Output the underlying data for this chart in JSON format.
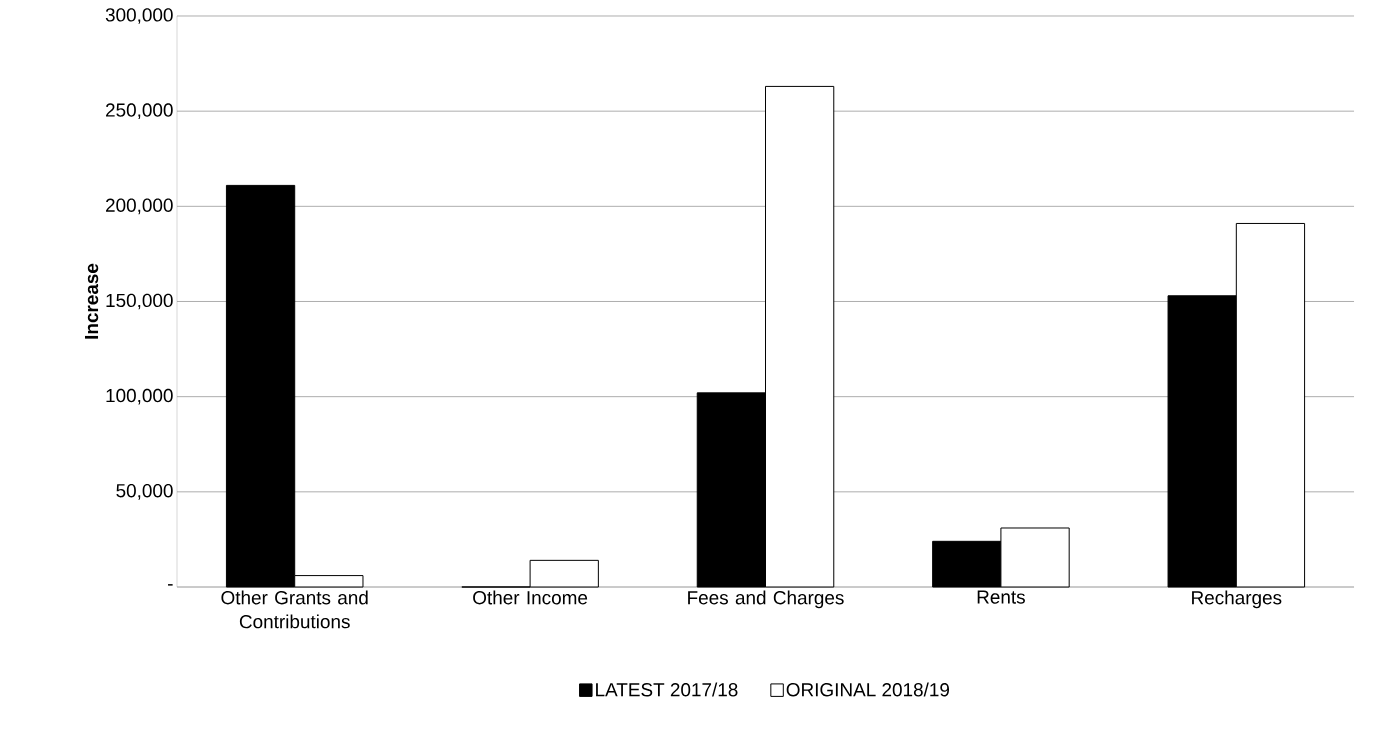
{
  "chart_data": {
    "type": "bar",
    "ylabel": "Increase",
    "categories": [
      "Other Grants and Contributions",
      "Other Income",
      "Fees and Charges",
      "Rents",
      "Recharges"
    ],
    "series": [
      {
        "name": "LATEST 2017/18",
        "color": "#000000",
        "values": [
          211000,
          0,
          102000,
          24000,
          153000
        ]
      },
      {
        "name": "ORIGINAL 2018/19",
        "color": "#ffffff",
        "values": [
          6000,
          14000,
          263000,
          31000,
          191000
        ]
      }
    ],
    "ylim": [
      0,
      300000
    ],
    "yticks": [
      {
        "value": 0,
        "label": "-"
      },
      {
        "value": 50000,
        "label": "50,000"
      },
      {
        "value": 100000,
        "label": "100,000"
      },
      {
        "value": 150000,
        "label": "150,000"
      },
      {
        "value": 200000,
        "label": "200,000"
      },
      {
        "value": 250000,
        "label": "250,000"
      },
      {
        "value": 300000,
        "label": "300,000"
      }
    ],
    "grid": "y",
    "legend": "bottom"
  }
}
